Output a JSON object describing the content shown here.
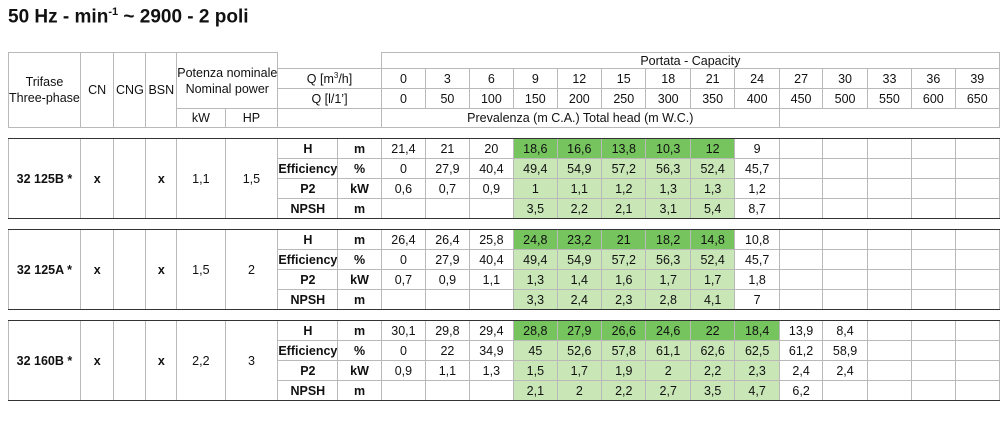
{
  "title": {
    "prefix": "50 Hz - min",
    "sup": "-1",
    "suffix": " ~ 2900 - 2 poli"
  },
  "headers": {
    "trifase": "Trifase",
    "three_phase": "Three-phase",
    "cn": "CN",
    "cng": "CNG",
    "bsn": "BSN",
    "potenza": "Potenza nominale",
    "nominal_power": "Nominal power",
    "portata": "Portata - Capacity",
    "q_m3h_pre": "Q [m",
    "q_m3h_sup": "3",
    "q_m3h_post": "/h]",
    "q_lmin": "Q [l/1’]",
    "kw": "kW",
    "hp": "HP",
    "prevalenza": "Prevalenza (m C.A.) Total head (m W.C.)"
  },
  "q_m3h": [
    "0",
    "3",
    "6",
    "9",
    "12",
    "15",
    "18",
    "21",
    "24",
    "27",
    "30",
    "33",
    "36",
    "39"
  ],
  "q_lmin": [
    "0",
    "50",
    "100",
    "150",
    "200",
    "250",
    "300",
    "350",
    "400",
    "450",
    "500",
    "550",
    "600",
    "650"
  ],
  "rows": [
    {
      "label": "H",
      "unit": "m"
    },
    {
      "label": "Efficiency",
      "unit": "%"
    },
    {
      "label": "P2",
      "unit": "kW"
    },
    {
      "label": "NPSH",
      "unit": "m"
    }
  ],
  "pumps": [
    {
      "model": "32 125B *",
      "cn": "x",
      "cng": "",
      "bsn": "x",
      "kw": "1,1",
      "hp": "1,5",
      "data": [
        [
          "21,4",
          "21",
          "20",
          "18,6",
          "16,6",
          "13,8",
          "10,3",
          "12",
          "9",
          "",
          "",
          "",
          "",
          ""
        ],
        [
          "0",
          "27,9",
          "40,4",
          "49,4",
          "54,9",
          "57,2",
          "56,3",
          "52,4",
          "45,7",
          "",
          "",
          "",
          "",
          ""
        ],
        [
          "0,6",
          "0,7",
          "0,9",
          "1",
          "1,1",
          "1,2",
          "1,3",
          "1,3",
          "1,2",
          "",
          "",
          "",
          "",
          ""
        ],
        [
          "",
          "",
          "",
          "3,5",
          "2,2",
          "2,1",
          "3,1",
          "5,4",
          "8,7",
          "",
          "",
          "",
          "",
          ""
        ]
      ],
      "green": [
        3,
        7
      ]
    },
    {
      "model": "32 125A *",
      "cn": "x",
      "cng": "",
      "bsn": "x",
      "kw": "1,5",
      "hp": "2",
      "data": [
        [
          "26,4",
          "26,4",
          "25,8",
          "24,8",
          "23,2",
          "21",
          "18,2",
          "14,8",
          "10,8",
          "",
          "",
          "",
          "",
          ""
        ],
        [
          "0",
          "27,9",
          "40,4",
          "49,4",
          "54,9",
          "57,2",
          "56,3",
          "52,4",
          "45,7",
          "",
          "",
          "",
          "",
          ""
        ],
        [
          "0,7",
          "0,9",
          "1,1",
          "1,3",
          "1,4",
          "1,6",
          "1,7",
          "1,7",
          "1,8",
          "",
          "",
          "",
          "",
          ""
        ],
        [
          "",
          "",
          "",
          "3,3",
          "2,4",
          "2,3",
          "2,8",
          "4,1",
          "7",
          "",
          "",
          "",
          "",
          ""
        ]
      ],
      "green": [
        3,
        7
      ]
    },
    {
      "model": "32 160B *",
      "cn": "x",
      "cng": "",
      "bsn": "x",
      "kw": "2,2",
      "hp": "3",
      "data": [
        [
          "30,1",
          "29,8",
          "29,4",
          "28,8",
          "27,9",
          "26,6",
          "24,6",
          "22",
          "18,4",
          "13,9",
          "8,4",
          "",
          "",
          ""
        ],
        [
          "0",
          "22",
          "34,9",
          "45",
          "52,6",
          "57,8",
          "61,1",
          "62,6",
          "62,5",
          "61,2",
          "58,9",
          "",
          "",
          ""
        ],
        [
          "0,9",
          "1,1",
          "1,3",
          "1,5",
          "1,7",
          "1,9",
          "2",
          "2,2",
          "2,3",
          "2,4",
          "2,4",
          "",
          "",
          ""
        ],
        [
          "",
          "",
          "",
          "2,1",
          "2",
          "2,2",
          "2,7",
          "3,5",
          "4,7",
          "6,2",
          "",
          "",
          "",
          ""
        ]
      ],
      "green": [
        3,
        8
      ]
    }
  ]
}
